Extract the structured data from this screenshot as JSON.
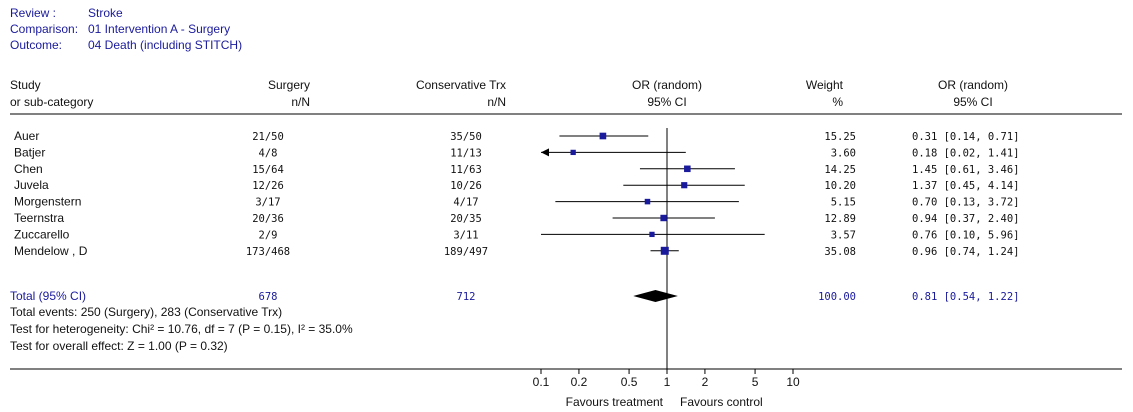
{
  "header": [
    {
      "label": "Review :",
      "value": "Stroke"
    },
    {
      "label": "Comparison:",
      "value": "01 Intervention A - Surgery"
    },
    {
      "label": "Outcome:",
      "value": "04 Death (including STITCH)"
    }
  ],
  "columns": {
    "study": [
      "Study",
      "or sub-category"
    ],
    "surgery": [
      "Surgery",
      "n/N"
    ],
    "conservative": [
      "Conservative Trx",
      "n/N"
    ],
    "or_plot": [
      "OR (random)",
      "95% CI"
    ],
    "weight": [
      "Weight",
      "%"
    ],
    "or_text": [
      "OR (random)",
      "95% CI"
    ]
  },
  "total": {
    "label": "Total (95% CI)",
    "surgery_n": "678",
    "conservative_n": "712",
    "weight": "100.00",
    "or_text": "0.81 [0.54, 1.22]"
  },
  "footnotes": [
    "Total events: 250 (Surgery), 283 (Conservative Trx)",
    "Test for heterogeneity: Chi² = 10.76, df = 7 (P = 0.15), I² = 35.0%",
    "Test for overall effect: Z = 1.00 (P = 0.32)"
  ],
  "axis_labels": {
    "left": "Favours treatment",
    "right": "Favours control"
  },
  "chart_data": {
    "type": "forest",
    "scale": "log",
    "xlim": [
      0.1,
      10
    ],
    "reference_line": 1,
    "xticks": [
      0.1,
      0.2,
      0.5,
      1,
      2,
      5,
      10
    ],
    "xtick_labels": [
      "0.1",
      "0.2",
      "0.5",
      "1",
      "2",
      "5",
      "10"
    ],
    "studies": [
      {
        "name": "Auer",
        "surgery": "21/50",
        "conservative": "35/50",
        "weight": "15.25",
        "or_text": "0.31 [0.14, 0.71]",
        "or": 0.31,
        "lo": 0.14,
        "hi": 0.71
      },
      {
        "name": "Batjer",
        "surgery": "4/8",
        "conservative": "11/13",
        "weight": "3.60",
        "or_text": "0.18 [0.02, 1.41]",
        "or": 0.18,
        "lo": 0.02,
        "hi": 1.41
      },
      {
        "name": "Chen",
        "surgery": "15/64",
        "conservative": "11/63",
        "weight": "14.25",
        "or_text": "1.45 [0.61, 3.46]",
        "or": 1.45,
        "lo": 0.61,
        "hi": 3.46
      },
      {
        "name": "Juvela",
        "surgery": "12/26",
        "conservative": "10/26",
        "weight": "10.20",
        "or_text": "1.37 [0.45, 4.14]",
        "or": 1.37,
        "lo": 0.45,
        "hi": 4.14
      },
      {
        "name": "Morgenstern",
        "surgery": "3/17",
        "conservative": "4/17",
        "weight": "5.15",
        "or_text": "0.70 [0.13, 3.72]",
        "or": 0.7,
        "lo": 0.13,
        "hi": 3.72
      },
      {
        "name": "Teernstra",
        "surgery": "20/36",
        "conservative": "20/35",
        "weight": "12.89",
        "or_text": "0.94 [0.37, 2.40]",
        "or": 0.94,
        "lo": 0.37,
        "hi": 2.4
      },
      {
        "name": "Zuccarello",
        "surgery": "2/9",
        "conservative": "3/11",
        "weight": "3.57",
        "or_text": "0.76 [0.10, 5.96]",
        "or": 0.76,
        "lo": 0.1,
        "hi": 5.96
      },
      {
        "name": "Mendelow , D",
        "surgery": "173/468",
        "conservative": "189/497",
        "weight": "35.08",
        "or_text": "0.96 [0.74, 1.24]",
        "or": 0.96,
        "lo": 0.74,
        "hi": 1.24
      }
    ],
    "pooled": {
      "or": 0.81,
      "lo": 0.54,
      "hi": 1.22
    }
  }
}
